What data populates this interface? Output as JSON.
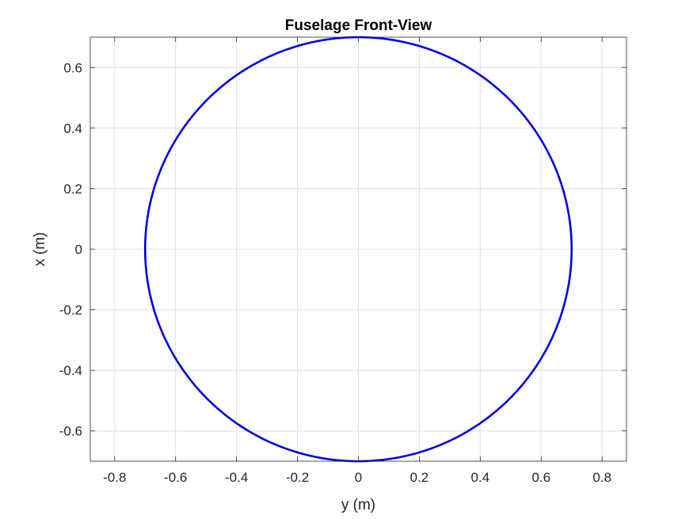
{
  "chart_data": {
    "type": "line",
    "title": "Fuselage Front-View",
    "xlabel": "y (m)",
    "ylabel": "x (m)",
    "xlim": [
      -0.88,
      0.88
    ],
    "ylim": [
      -0.7,
      0.7
    ],
    "xticks": [
      -0.8,
      -0.6,
      -0.4,
      -0.2,
      0,
      0.2,
      0.4,
      0.6,
      0.8
    ],
    "xtick_labels": [
      "-0.8",
      "-0.6",
      "-0.4",
      "-0.2",
      "0",
      "0.2",
      "0.4",
      "0.6",
      "0.8"
    ],
    "yticks": [
      -0.6,
      -0.4,
      -0.2,
      0,
      0.2,
      0.4,
      0.6
    ],
    "ytick_labels": [
      "-0.6",
      "-0.4",
      "-0.2",
      "0",
      "0.2",
      "0.4",
      "0.6"
    ],
    "grid": true,
    "series": [
      {
        "color": "#0000e6",
        "shape": "circle",
        "center": [
          0,
          0
        ],
        "radius": 0.7
      }
    ]
  }
}
